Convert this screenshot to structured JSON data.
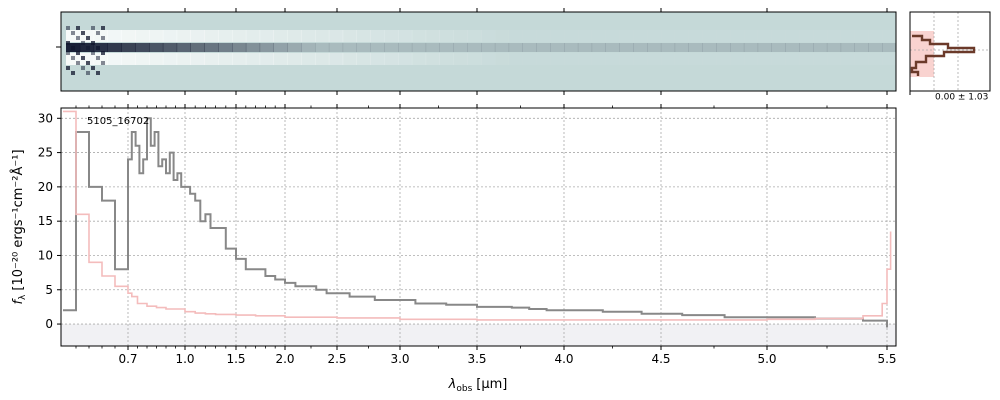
{
  "chart_data": [
    {
      "type": "heatmap",
      "panel": "2d-spectrum",
      "description_colormap": [
        "#c5d9d8",
        "#ffffff",
        "#10162e"
      ],
      "colors": {
        "background": "#c5d9d8",
        "trace": "#10162e"
      }
    },
    {
      "type": "line",
      "panel": "spatial-profile",
      "annotation": "0.00 ± 1.03",
      "colors": {
        "profile": "#6b3a2a",
        "fill": "#f8c8c4"
      }
    },
    {
      "type": "line",
      "panel": "1d-spectrum",
      "label": "5105_16702",
      "xlabel_main": "λ",
      "xlabel_sub": "obs",
      "xlabel_unit": "[μm]",
      "ylabel_main": "f",
      "ylabel_sub": "λ",
      "ylabel_unit": "[10⁻²⁰ ergs⁻¹cm⁻²Å⁻¹]",
      "x_scale": "nonlinear (wavelength resampled)",
      "xticks": [
        "0.7",
        "1.0",
        "1.5",
        "2.0",
        "2.5",
        "3.0",
        "3.5",
        "4.0",
        "4.5",
        "5.0",
        "5.5"
      ],
      "yticks": [
        "0",
        "5",
        "10",
        "15",
        "20",
        "25",
        "30"
      ],
      "ylim": [
        -3.2,
        31.5
      ],
      "xlim_um": [
        0.6,
        5.55
      ],
      "grid": true,
      "series": [
        {
          "role": "flux",
          "color": "#888888",
          "x": [
            0.6,
            0.62,
            0.64,
            0.66,
            0.68,
            0.7,
            0.72,
            0.74,
            0.76,
            0.78,
            0.8,
            0.82,
            0.84,
            0.86,
            0.88,
            0.9,
            0.92,
            0.94,
            0.96,
            0.98,
            1.0,
            1.05,
            1.1,
            1.15,
            1.2,
            1.25,
            1.3,
            1.4,
            1.5,
            1.6,
            1.7,
            1.8,
            1.9,
            2.0,
            2.1,
            2.2,
            2.3,
            2.4,
            2.5,
            2.6,
            2.7,
            2.8,
            2.9,
            3.0,
            3.1,
            3.2,
            3.3,
            3.4,
            3.5,
            3.6,
            3.7,
            3.8,
            3.9,
            4.0,
            4.2,
            4.4,
            4.6,
            4.8,
            5.0,
            5.2,
            5.4,
            5.5
          ],
          "y": [
            2,
            28,
            20,
            18,
            8,
            24,
            28,
            26,
            22,
            24,
            30,
            26,
            28,
            23,
            24,
            22,
            25,
            21,
            22,
            20,
            20,
            19,
            18,
            15,
            16,
            14,
            14,
            11,
            9.5,
            8,
            8,
            7,
            6.5,
            6,
            5.5,
            5.5,
            5,
            4.5,
            4.5,
            4,
            4,
            3.5,
            3.5,
            3.5,
            3,
            3,
            2.8,
            2.8,
            2.5,
            2.5,
            2.4,
            2.2,
            2.0,
            2.0,
            1.8,
            1.5,
            1.3,
            1.0,
            1.0,
            0.8,
            0.5,
            -0.5
          ]
        },
        {
          "role": "uncertainty",
          "color": "#f4bcbc",
          "x": [
            0.6,
            0.62,
            0.64,
            0.66,
            0.68,
            0.7,
            0.72,
            0.75,
            0.8,
            0.85,
            0.9,
            1.0,
            1.1,
            1.2,
            1.3,
            1.5,
            1.7,
            2.0,
            2.5,
            3.0,
            3.5,
            4.0,
            4.5,
            5.0,
            5.2,
            5.4,
            5.48,
            5.5,
            5.52
          ],
          "y": [
            31,
            16,
            9,
            7,
            5.5,
            4.5,
            4,
            3,
            2.6,
            2.4,
            2.2,
            1.8,
            1.6,
            1.5,
            1.4,
            1.3,
            1.2,
            1.0,
            0.9,
            0.7,
            0.6,
            0.6,
            0.6,
            0.7,
            0.8,
            1.2,
            3,
            8,
            13.5
          ]
        }
      ]
    }
  ]
}
